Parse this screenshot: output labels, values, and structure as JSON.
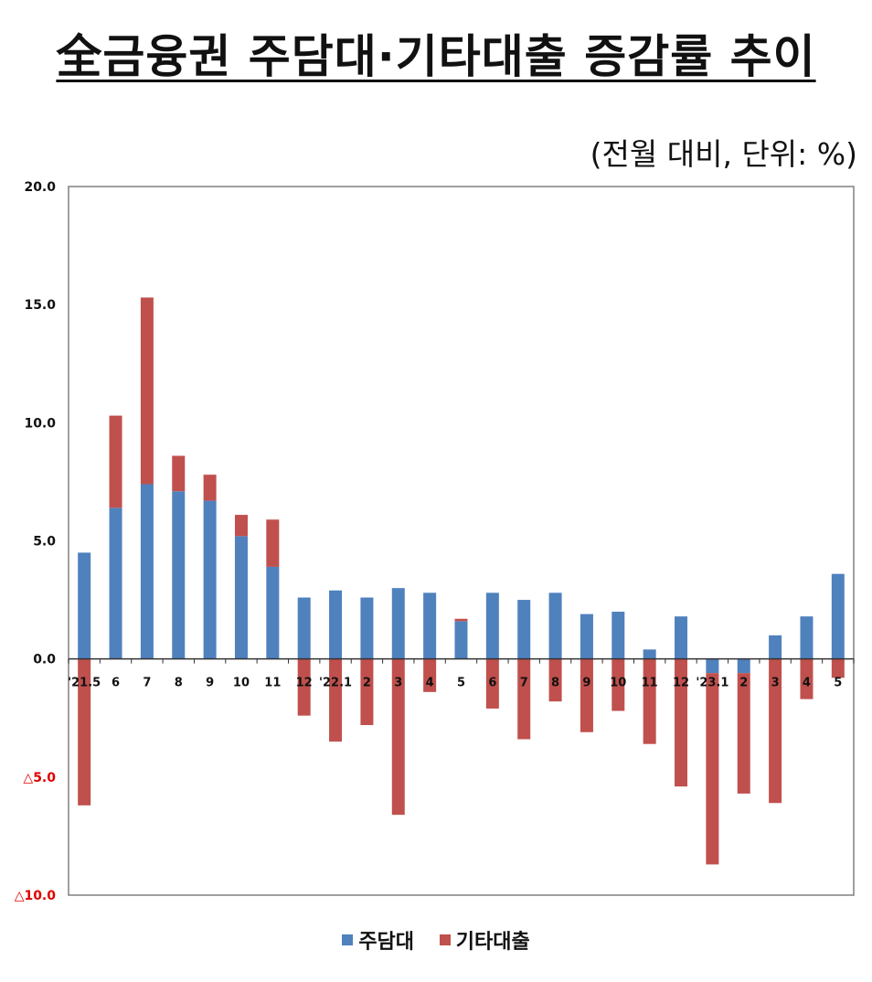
{
  "title": "全금융권 주담대·기타대출 증감률 추이",
  "unit_note": "(전월 대비, 단위: %)",
  "colors": {
    "mortgage": "#4F81BD",
    "other": "#C0504D",
    "neg_tick": "#e00000"
  },
  "chart_data": {
    "type": "bar",
    "stacked": true,
    "ylim": [
      -10,
      20
    ],
    "yticks": [
      {
        "value": 20,
        "label": "20.0"
      },
      {
        "value": 15,
        "label": "15.0"
      },
      {
        "value": 10,
        "label": "10.0"
      },
      {
        "value": 5,
        "label": "5.0"
      },
      {
        "value": 0,
        "label": "0.0"
      },
      {
        "value": -5,
        "label": "△5.0"
      },
      {
        "value": -10,
        "label": "△10.0"
      }
    ],
    "categories": [
      "'21.5",
      "6",
      "7",
      "8",
      "9",
      "10",
      "11",
      "12",
      "'22.1",
      "2",
      "3",
      "4",
      "5",
      "6",
      "7",
      "8",
      "9",
      "10",
      "11",
      "12",
      "'23.1",
      "2",
      "3",
      "4",
      "5"
    ],
    "series": [
      {
        "name": "주담대",
        "values": [
          4.5,
          6.4,
          7.4,
          7.1,
          6.7,
          5.2,
          3.9,
          2.6,
          2.9,
          2.6,
          3.0,
          2.8,
          1.6,
          2.8,
          2.5,
          2.8,
          1.9,
          2.0,
          0.4,
          1.8,
          -0.6,
          -0.6,
          1.0,
          1.8,
          3.6
        ]
      },
      {
        "name": "기타대출",
        "values": [
          -6.2,
          3.9,
          7.9,
          1.5,
          1.1,
          0.9,
          2.0,
          -2.4,
          -3.5,
          -2.8,
          -6.6,
          -1.4,
          0.1,
          -2.1,
          -3.4,
          -1.8,
          -3.1,
          -2.2,
          -3.6,
          -5.4,
          -8.1,
          -5.1,
          -6.1,
          -1.7,
          -0.8
        ]
      }
    ]
  },
  "legend": [
    {
      "label": "주담대",
      "color_key": "mortgage"
    },
    {
      "label": "기타대출",
      "color_key": "other"
    }
  ]
}
